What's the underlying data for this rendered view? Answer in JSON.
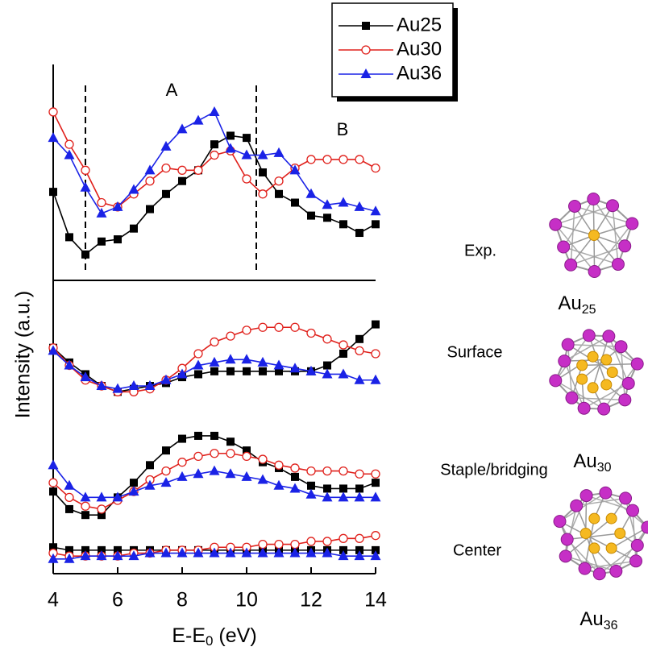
{
  "chart_data": [
    {
      "type": "line",
      "xlim": [
        4,
        14
      ],
      "ylim": [
        0,
        100
      ],
      "x": [
        4,
        4.5,
        5,
        5.5,
        6,
        6.5,
        7,
        7.5,
        8,
        8.5,
        9,
        9.5,
        10,
        10.5,
        11,
        11.5,
        12,
        12.5,
        13,
        13.5,
        14
      ],
      "series": [
        {
          "name": "Au25",
          "color": "#000000",
          "marker": "square",
          "values": [
            41,
            20,
            12,
            18,
            19,
            24,
            33,
            40,
            46,
            51,
            63,
            67,
            66,
            50,
            40,
            36,
            30,
            29,
            26,
            22,
            26
          ]
        },
        {
          "name": "Au30",
          "color": "#e0201b",
          "marker": "circle",
          "values": [
            78,
            63,
            51,
            36,
            34,
            40,
            46,
            52,
            51,
            51,
            58,
            60,
            47,
            40,
            46,
            52,
            56,
            56,
            56,
            56,
            52
          ]
        },
        {
          "name": "Au36",
          "color": "#1a22e6",
          "marker": "triangle",
          "values": [
            66,
            58,
            43,
            31,
            34,
            42,
            51,
            62,
            70,
            74,
            78,
            61,
            58,
            58,
            59,
            51,
            40,
            35,
            36,
            34,
            32
          ]
        }
      ],
      "vlines": [
        5,
        10.3
      ],
      "annotations": [
        "A",
        "B"
      ],
      "panel_label": "Exp."
    },
    {
      "type": "line",
      "xlim": [
        4,
        14
      ],
      "ylim": [
        0,
        100
      ],
      "xticks": [
        4,
        6,
        8,
        10,
        12,
        14
      ],
      "xlabel": [
        "E-E",
        "0",
        " (eV)"
      ],
      "ylabel": "Intensity (a.u.)",
      "x": [
        4,
        4.5,
        5,
        5.5,
        6,
        6.5,
        7,
        7.5,
        8,
        8.5,
        9,
        9.5,
        10,
        10.5,
        11,
        11.5,
        12,
        12.5,
        13,
        13.5,
        14
      ],
      "groups": [
        {
          "label": "Surface",
          "series": [
            {
              "color": "#000000",
              "marker": "square",
              "values": [
                77,
                72,
                68,
                64,
                62,
                63,
                64,
                65,
                67,
                68,
                69,
                69,
                69,
                69,
                69,
                69,
                69,
                71,
                75,
                80,
                85
              ]
            },
            {
              "color": "#e0201b",
              "marker": "circle",
              "values": [
                77,
                71,
                66,
                64,
                62,
                62,
                63,
                66,
                70,
                75,
                79,
                81,
                83,
                84,
                84,
                84,
                82,
                80,
                78,
                76,
                75
              ]
            },
            {
              "color": "#1a22e6",
              "marker": "triangle",
              "values": [
                76,
                71,
                67,
                64,
                63,
                64,
                64,
                66,
                68,
                71,
                72,
                73,
                73,
                72,
                71,
                70,
                69,
                68,
                68,
                66,
                66
              ]
            }
          ]
        },
        {
          "label": "Staple/bridging",
          "series": [
            {
              "color": "#000000",
              "marker": "square",
              "values": [
                28,
                22,
                20,
                20,
                26,
                31,
                37,
                42,
                46,
                47,
                47,
                45,
                42,
                38,
                36,
                33,
                30,
                29,
                29,
                29,
                31
              ]
            },
            {
              "color": "#e0201b",
              "marker": "circle",
              "values": [
                31,
                26,
                23,
                22,
                25,
                28,
                32,
                35,
                38,
                40,
                41,
                41,
                40,
                39,
                37,
                36,
                35,
                35,
                35,
                34,
                34
              ]
            },
            {
              "color": "#1a22e6",
              "marker": "triangle",
              "values": [
                37,
                30,
                26,
                26,
                26,
                28,
                30,
                31,
                33,
                34,
                35,
                34,
                33,
                32,
                30,
                29,
                27,
                26,
                26,
                26,
                26
              ]
            }
          ]
        },
        {
          "label": "Center",
          "series": [
            {
              "color": "#000000",
              "marker": "square",
              "values": [
                9,
                8,
                8,
                8,
                8,
                8,
                8,
                8,
                8,
                8,
                8,
                8,
                8,
                8,
                8,
                8,
                8,
                8,
                8,
                8,
                8
              ]
            },
            {
              "color": "#e0201b",
              "marker": "circle",
              "values": [
                7,
                6,
                6,
                6,
                6,
                7,
                7,
                8,
                8,
                8,
                9,
                9,
                9,
                10,
                10,
                10,
                11,
                11,
                12,
                12,
                13
              ]
            },
            {
              "color": "#1a22e6",
              "marker": "triangle",
              "values": [
                5,
                5,
                6,
                6,
                6,
                6,
                7,
                7,
                7,
                7,
                7,
                7,
                7,
                7,
                7,
                7,
                7,
                7,
                6,
                6,
                6
              ]
            }
          ]
        }
      ]
    }
  ],
  "structures": [
    {
      "base": "Au",
      "sub": "25"
    },
    {
      "base": "Au",
      "sub": "30"
    },
    {
      "base": "Au",
      "sub": "36"
    }
  ]
}
